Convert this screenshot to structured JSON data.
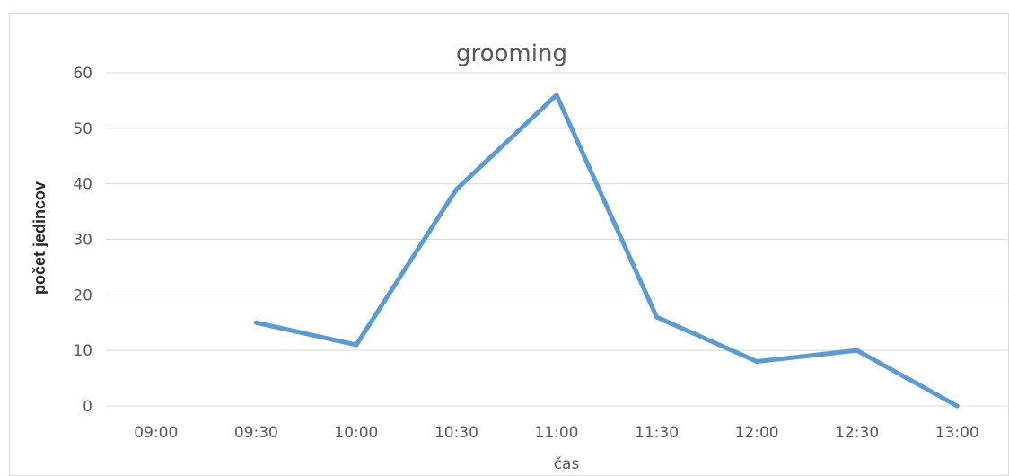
{
  "chart_data": {
    "type": "line",
    "title": "grooming",
    "xlabel": "čas",
    "ylabel": "počet jedincov",
    "categories": [
      "09:00",
      "09:30",
      "10:00",
      "10:30",
      "11:00",
      "11:30",
      "12:00",
      "12:30",
      "13:00"
    ],
    "series": [
      {
        "values": [
          null,
          15,
          11,
          39,
          56,
          16,
          8,
          10,
          0
        ]
      }
    ],
    "ylim": [
      0,
      60
    ],
    "yticks": [
      "0",
      "10",
      "20",
      "30",
      "40",
      "50",
      "60"
    ],
    "grid": true,
    "colors": {
      "line": "#5b9bd5",
      "grid": "#d9d9d9",
      "text": "#595959"
    }
  }
}
